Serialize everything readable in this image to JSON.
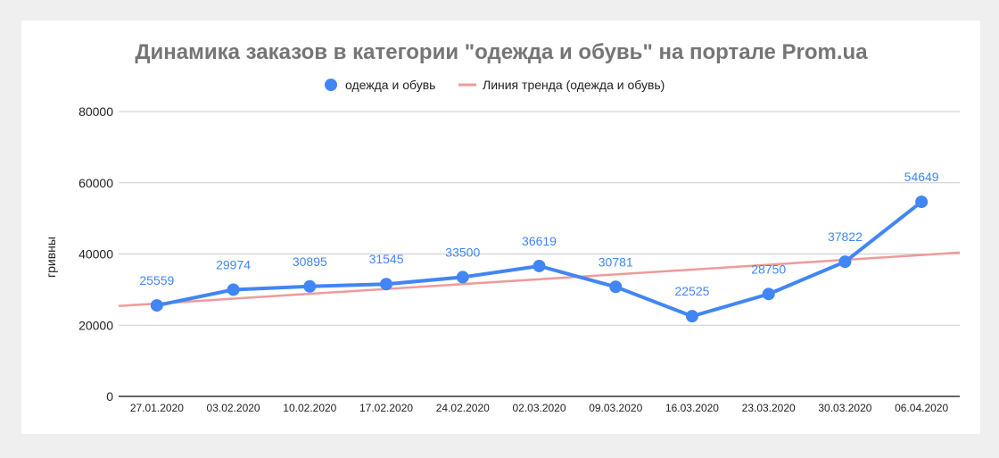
{
  "colors": {
    "page_background": "#efefef",
    "card_background": "#ffffff",
    "series": "#4285f4",
    "trendline": "#ef9a9a",
    "grid": "#cccccc",
    "title": "#757575"
  },
  "chart_data": {
    "type": "line",
    "title": "Динамика заказов в категории \"одежда и обувь\" на портале Prom.ua",
    "xlabel": "",
    "ylabel": "гривны",
    "ylim": [
      0,
      80000
    ],
    "yticks": [
      "80000",
      "60000",
      "40000",
      "20000",
      "0"
    ],
    "grid": true,
    "legend_position": "top",
    "categories": [
      "27.01.2020",
      "03.02.2020",
      "10.02.2020",
      "17.02.2020",
      "24.02.2020",
      "02.03.2020",
      "09.03.2020",
      "16.03.2020",
      "23.03.2020",
      "30.03.2020",
      "06.04.2020"
    ],
    "series": [
      {
        "name": "одежда и обувь",
        "values": [
          25559,
          29974,
          30895,
          31545,
          33500,
          36619,
          30781,
          22525,
          28750,
          37822,
          54649
        ],
        "labels": [
          "25559",
          "29974",
          "30895",
          "31545",
          "33500",
          "36619",
          "30781",
          "22525",
          "28750",
          "37822",
          "54649"
        ],
        "color": "#4285f4"
      }
    ],
    "trendline": {
      "name": "Линия тренда (одежда и обувь)",
      "start_value": 25400,
      "end_value": 40400,
      "color": "#ef9a9a"
    }
  }
}
